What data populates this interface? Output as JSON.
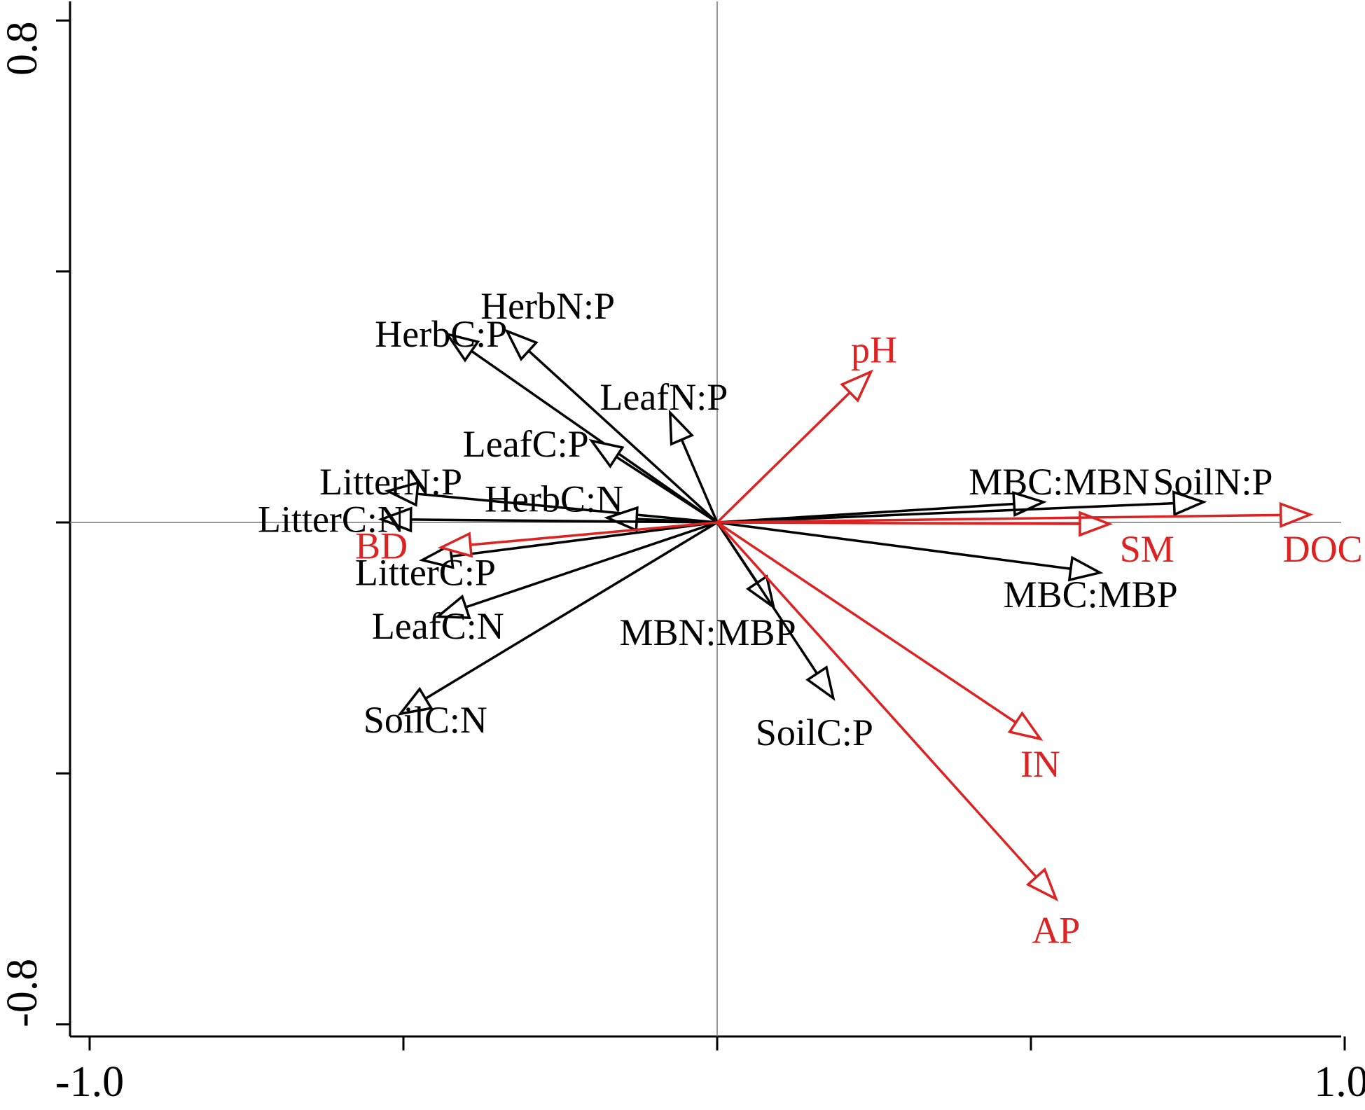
{
  "chart_data": {
    "type": "scatter",
    "title": "",
    "xlabel": "",
    "ylabel": "",
    "xlim": [
      -1.0,
      1.0
    ],
    "ylim": [
      -0.8,
      0.8
    ],
    "grid": false,
    "x_tick_labels": [
      "-1.0",
      "1.0"
    ],
    "y_tick_labels": [
      "0.8",
      "-0.8"
    ],
    "colors": {
      "response": "#000000",
      "explanatory": "#dd2222"
    },
    "series": [
      {
        "group": "response",
        "vectors": [
          {
            "label": "HerbN:P",
            "x": -0.67,
            "y": 0.61,
            "lx": -0.54,
            "ly": 0.69
          },
          {
            "label": "HerbC:P",
            "x": -0.86,
            "y": 0.6,
            "lx": -0.88,
            "ly": 0.6
          },
          {
            "label": "LeafN:P",
            "x": -0.15,
            "y": 0.35,
            "lx": -0.17,
            "ly": 0.4
          },
          {
            "label": "LeafC:P",
            "x": -0.4,
            "y": 0.26,
            "lx": -0.61,
            "ly": 0.25
          },
          {
            "label": "LitterN:P",
            "x": -1.05,
            "y": 0.1,
            "lx": -1.04,
            "ly": 0.13
          },
          {
            "label": "HerbC:N",
            "x": -0.35,
            "y": 0.015,
            "lx": -0.52,
            "ly": 0.075
          },
          {
            "label": "LitterC:N",
            "x": -1.07,
            "y": 0.01,
            "lx": -1.23,
            "ly": 0.01
          },
          {
            "label": "LitterC:P",
            "x": -0.94,
            "y": -0.12,
            "lx": -0.93,
            "ly": -0.16
          },
          {
            "label": "LeafC:N",
            "x": -0.89,
            "y": -0.3,
            "lx": -0.89,
            "ly": -0.33
          },
          {
            "label": "SoilC:N",
            "x": -1.01,
            "y": -0.61,
            "lx": -0.93,
            "ly": -0.63
          },
          {
            "label": "MBN:MBP",
            "x": 0.18,
            "y": -0.27,
            "lx": -0.03,
            "ly": -0.35
          },
          {
            "label": "SoilC:P",
            "x": 0.37,
            "y": -0.56,
            "lx": 0.31,
            "ly": -0.67
          },
          {
            "label": "MBC:MBN",
            "x": 1.04,
            "y": 0.065,
            "lx": 1.09,
            "ly": 0.13
          },
          {
            "label": "SoilN:P",
            "x": 1.55,
            "y": 0.065,
            "lx": 1.58,
            "ly": 0.13
          },
          {
            "label": "MBC:MBP",
            "x": 1.22,
            "y": -0.16,
            "lx": 1.19,
            "ly": -0.23
          }
        ]
      },
      {
        "group": "explanatory",
        "vectors": [
          {
            "label": "pH",
            "x": 0.49,
            "y": 0.48,
            "lx": 0.5,
            "ly": 0.55
          },
          {
            "label": "BD",
            "x": -0.88,
            "y": -0.08,
            "lx": -1.07,
            "ly": -0.075
          },
          {
            "label": "SM",
            "x": 1.25,
            "y": -0.005,
            "lx": 1.37,
            "ly": -0.085
          },
          {
            "label": "DOC",
            "x": 1.89,
            "y": 0.025,
            "lx": 1.93,
            "ly": -0.085
          },
          {
            "label": "IN",
            "x": 1.03,
            "y": -0.69,
            "lx": 1.03,
            "ly": -0.77
          },
          {
            "label": "AP",
            "x": 1.08,
            "y": -1.2,
            "lx": 1.08,
            "ly": -1.3
          }
        ]
      }
    ]
  }
}
